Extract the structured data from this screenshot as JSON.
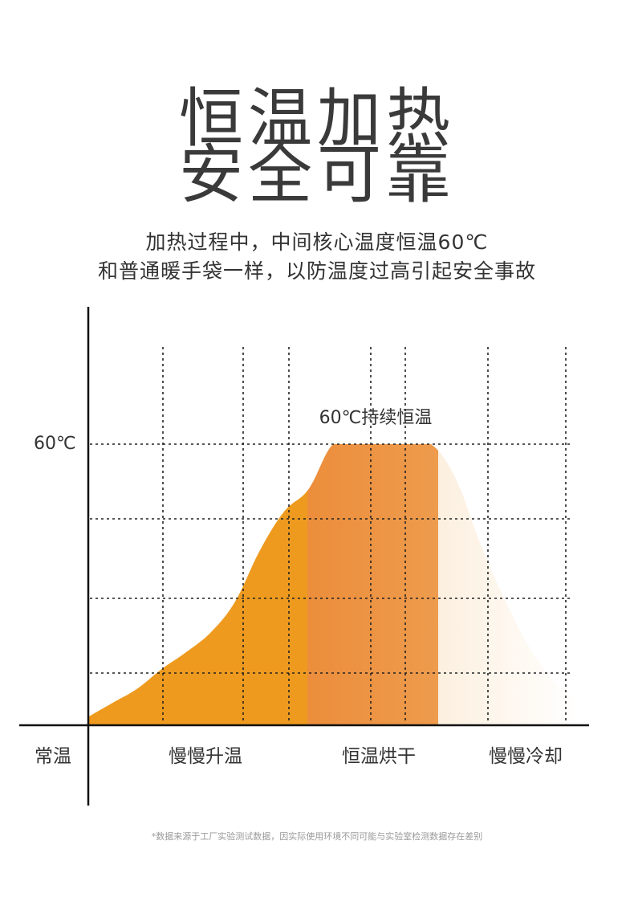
{
  "headline": {
    "line1": "恒温加热",
    "line2": "安全可靠"
  },
  "subtitle": {
    "line1": "加热过程中，中间核心温度恒温60℃",
    "line2": "和普通暖手袋一样，以防温度过高引起安全事故"
  },
  "chart_data": {
    "type": "area",
    "title": "",
    "y_tick_label": "60℃",
    "origin_label": "常温",
    "plateau_annotation": "60℃持续恒温",
    "phases": [
      "慢慢升温",
      "恒温烘干",
      "慢慢冷却"
    ],
    "x": [
      0,
      0.5,
      1,
      1.5,
      2,
      2.5,
      3,
      3.5,
      4,
      4.5,
      5,
      5.5,
      6,
      6.5,
      7,
      7.5,
      8,
      8.5,
      9,
      9.5,
      10
    ],
    "values": [
      3,
      8,
      13,
      20,
      26,
      33,
      44,
      62,
      76,
      84,
      100,
      100,
      100,
      100,
      100,
      88,
      65,
      45,
      28,
      16,
      9
    ],
    "ylim": [
      0,
      115
    ],
    "xlim": [
      0,
      10
    ],
    "colors": {
      "heating": "#EE9A1F",
      "constant": "#E8781F",
      "constant_end": "#F0A95F",
      "cooling_start": "#F5C98E",
      "cooling_end": "#FFFFFF"
    }
  },
  "footnote": "*数据来源于工厂实验测试数据，因实际使用环境不同可能与实验室检测数据存在差别"
}
